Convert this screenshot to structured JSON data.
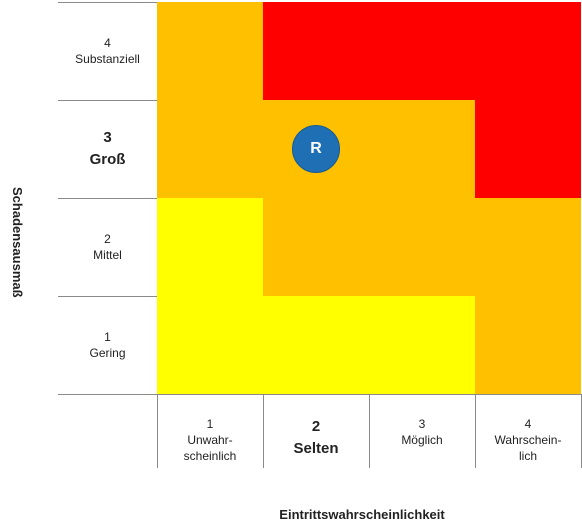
{
  "y_axis_label": "Schadensausmaß",
  "x_axis_label": "Eintrittswahrscheinlichkeit",
  "rows": [
    {
      "num": "4",
      "label": "Substanziell",
      "bold": false
    },
    {
      "num": "3",
      "label": "Groß",
      "bold": true
    },
    {
      "num": "2",
      "label": "Mittel",
      "bold": false
    },
    {
      "num": "1",
      "label": "Gering",
      "bold": false
    }
  ],
  "columns": [
    {
      "num": "1",
      "label": "Unwahr-\nscheinlich",
      "bold": false
    },
    {
      "num": "2",
      "label": "Selten",
      "bold": true
    },
    {
      "num": "3",
      "label": "Möglich",
      "bold": false
    },
    {
      "num": "4",
      "label": "Wahrschein-\nlich",
      "bold": false
    }
  ],
  "colors": {
    "red": "#ff0000",
    "orange": "#ffc000",
    "yellow": "#ffff00",
    "marker": "#1f6fb5"
  },
  "grid": [
    [
      "orange",
      "red",
      "red",
      "red"
    ],
    [
      "orange",
      "orange",
      "orange",
      "red"
    ],
    [
      "yellow",
      "orange",
      "orange",
      "orange"
    ],
    [
      "yellow",
      "yellow",
      "yellow",
      "orange"
    ]
  ],
  "marker": {
    "label": "R",
    "row_level": 3,
    "column_level": 2
  }
}
